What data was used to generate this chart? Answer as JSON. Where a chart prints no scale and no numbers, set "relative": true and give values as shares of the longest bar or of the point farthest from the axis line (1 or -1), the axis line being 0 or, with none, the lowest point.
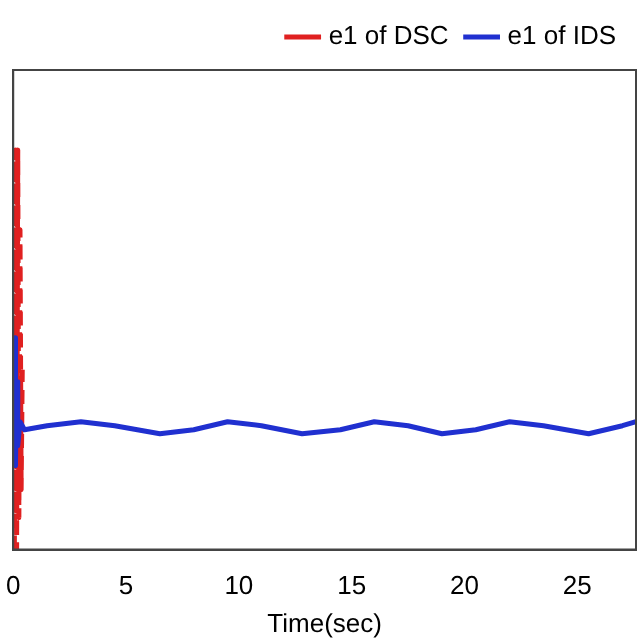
{
  "chart_data": {
    "type": "line",
    "relative": true,
    "xlabel": "Time(sec)",
    "xlim": [
      0,
      27.6
    ],
    "xticks": [
      0,
      5,
      10,
      15,
      20,
      25
    ],
    "grid": false,
    "legend": "top right",
    "marker": "none",
    "series": [
      {
        "name": "e1 of DSC",
        "color": "#e02020",
        "line_style": "dashed",
        "x": [
          0.05,
          0.1,
          0.15,
          0.2,
          0.25,
          0.3,
          0.35,
          0.4
        ],
        "values": [
          0,
          1,
          0,
          1,
          0.08,
          0.8,
          0.15,
          0.45
        ]
      },
      {
        "name": "e1 of IDS",
        "color": "#2030d0",
        "line_style": "solid",
        "x": [
          0,
          0.05,
          0.1,
          0.15,
          0.2,
          0.3,
          0.5,
          1.5,
          3,
          4.5,
          6.5,
          8,
          9.5,
          11,
          12.8,
          14.5,
          16,
          17.5,
          19,
          20.5,
          22,
          23.5,
          25.5,
          27,
          27.6
        ],
        "values": [
          0.3,
          0.53,
          0.21,
          0.42,
          0.26,
          0.32,
          0.3,
          0.31,
          0.32,
          0.31,
          0.29,
          0.3,
          0.32,
          0.31,
          0.29,
          0.3,
          0.32,
          0.31,
          0.29,
          0.3,
          0.32,
          0.31,
          0.29,
          0.31,
          0.32
        ]
      }
    ]
  }
}
